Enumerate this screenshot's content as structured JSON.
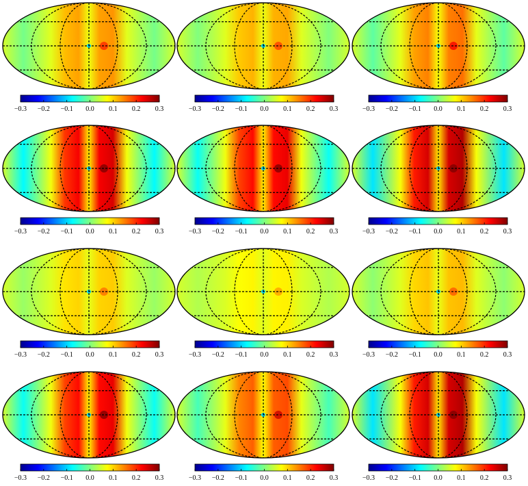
{
  "panels": [
    {
      "colorbar": {
        "lim": [
          -0.3,
          0.3
        ],
        "ticks": [
          {
            "value": -0.3,
            "label": "−0.3"
          },
          {
            "value": -0.2,
            "label": "−0.2"
          },
          {
            "value": -0.1,
            "label": "−0.1"
          },
          {
            "value": 0,
            "label": "0.0"
          },
          0.1,
          0.2,
          0.3
        ]
      }
    },
    {
      "colorbar": {
        "lim": [
          -0.3,
          0.3
        ],
        "ticks": [
          {
            "value": -0.3,
            "label": "−0.3"
          },
          {
            "value": -0.2,
            "label": "−0.2"
          },
          {
            "value": -0.1,
            "label": "−0.1"
          },
          {
            "value": 0,
            "label": "0.0"
          },
          0.1,
          0.2,
          0.3
        ]
      }
    },
    {
      "colorbar": {
        "lim": [
          -0.3,
          0.3
        ],
        "ticks": [
          {
            "value": -0.3,
            "label": "−0.3"
          },
          {
            "value": -0.2,
            "label": "−0.2"
          },
          {
            "value": -0.1,
            "label": "−0.1"
          },
          {
            "value": 0,
            "label": "0.0"
          },
          0.1,
          0.2,
          0.3
        ]
      }
    },
    {
      "colorbar": {
        "lim": [
          -0.3,
          0.3
        ],
        "ticks": [
          {
            "value": -0.3,
            "label": "−0.3"
          },
          {
            "value": -0.2,
            "label": "−0.2"
          },
          {
            "value": -0.1,
            "label": "−0.1"
          },
          {
            "value": 0,
            "label": "0.0"
          },
          0.1,
          0.2,
          0.3
        ]
      }
    },
    {
      "colorbar": {
        "lim": [
          -0.3,
          0.3
        ],
        "ticks": [
          {
            "value": -0.3,
            "label": "−0.3"
          },
          {
            "value": -0.2,
            "label": "−0.2"
          },
          {
            "value": -0.1,
            "label": "−0.1"
          },
          {
            "value": 0,
            "label": "0.0"
          },
          0.1,
          0.2,
          0.3
        ]
      }
    },
    {
      "colorbar": {
        "lim": [
          -0.3,
          0.3
        ],
        "ticks": [
          {
            "value": -0.3,
            "label": "−0.3"
          },
          {
            "value": -0.2,
            "label": "−0.2"
          },
          {
            "value": -0.1,
            "label": "−0.1"
          },
          {
            "value": 0,
            "label": "0.0"
          },
          0.1,
          0.2,
          0.3
        ]
      }
    },
    {
      "colorbar": {
        "lim": [
          -0.3,
          0.3
        ],
        "ticks": [
          {
            "value": -0.3,
            "label": "−0.3"
          },
          {
            "value": -0.2,
            "label": "−0.2"
          },
          {
            "value": -0.1,
            "label": "−0.1"
          },
          {
            "value": 0,
            "label": "0.0"
          },
          0.1,
          0.2,
          0.3
        ]
      }
    },
    {
      "colorbar": {
        "lim": [
          -0.3,
          0.3
        ],
        "ticks": [
          {
            "value": -0.3,
            "label": "−0.3"
          },
          {
            "value": -0.2,
            "label": "−0.2"
          },
          {
            "value": -0.1,
            "label": "−0.1"
          },
          {
            "value": 0,
            "label": "0.0"
          },
          0.1,
          0.2,
          0.3
        ]
      }
    },
    {
      "colorbar": {
        "lim": [
          -0.3,
          0.3
        ],
        "ticks": [
          {
            "value": -0.3,
            "label": "−0.3"
          },
          {
            "value": -0.2,
            "label": "−0.2"
          },
          {
            "value": -0.1,
            "label": "−0.1"
          },
          {
            "value": 0,
            "label": "0.0"
          },
          0.1,
          0.2,
          0.3
        ]
      }
    },
    {
      "colorbar": {
        "lim": [
          -0.3,
          0.3
        ],
        "ticks": [
          {
            "value": -0.3,
            "label": "−0.3"
          },
          {
            "value": -0.2,
            "label": "−0.2"
          },
          {
            "value": -0.1,
            "label": "−0.1"
          },
          {
            "value": 0,
            "label": "0.0"
          },
          0.1,
          0.2,
          0.3
        ]
      }
    },
    {
      "colorbar": {
        "lim": [
          -0.3,
          0.3
        ],
        "ticks": [
          {
            "value": -0.3,
            "label": "−0.3"
          },
          {
            "value": -0.2,
            "label": "−0.2"
          },
          {
            "value": -0.1,
            "label": "−0.1"
          },
          {
            "value": 0,
            "label": "0.0"
          },
          0.1,
          0.2,
          0.3
        ]
      }
    },
    {
      "colorbar": {
        "lim": [
          -0.3,
          0.3
        ],
        "ticks": [
          {
            "value": -0.3,
            "label": "−0.3"
          },
          {
            "value": -0.2,
            "label": "−0.2"
          },
          {
            "value": -0.1,
            "label": "−0.1"
          },
          {
            "value": 0,
            "label": "0.0"
          },
          0.1,
          0.2,
          0.3
        ]
      }
    }
  ]
}
